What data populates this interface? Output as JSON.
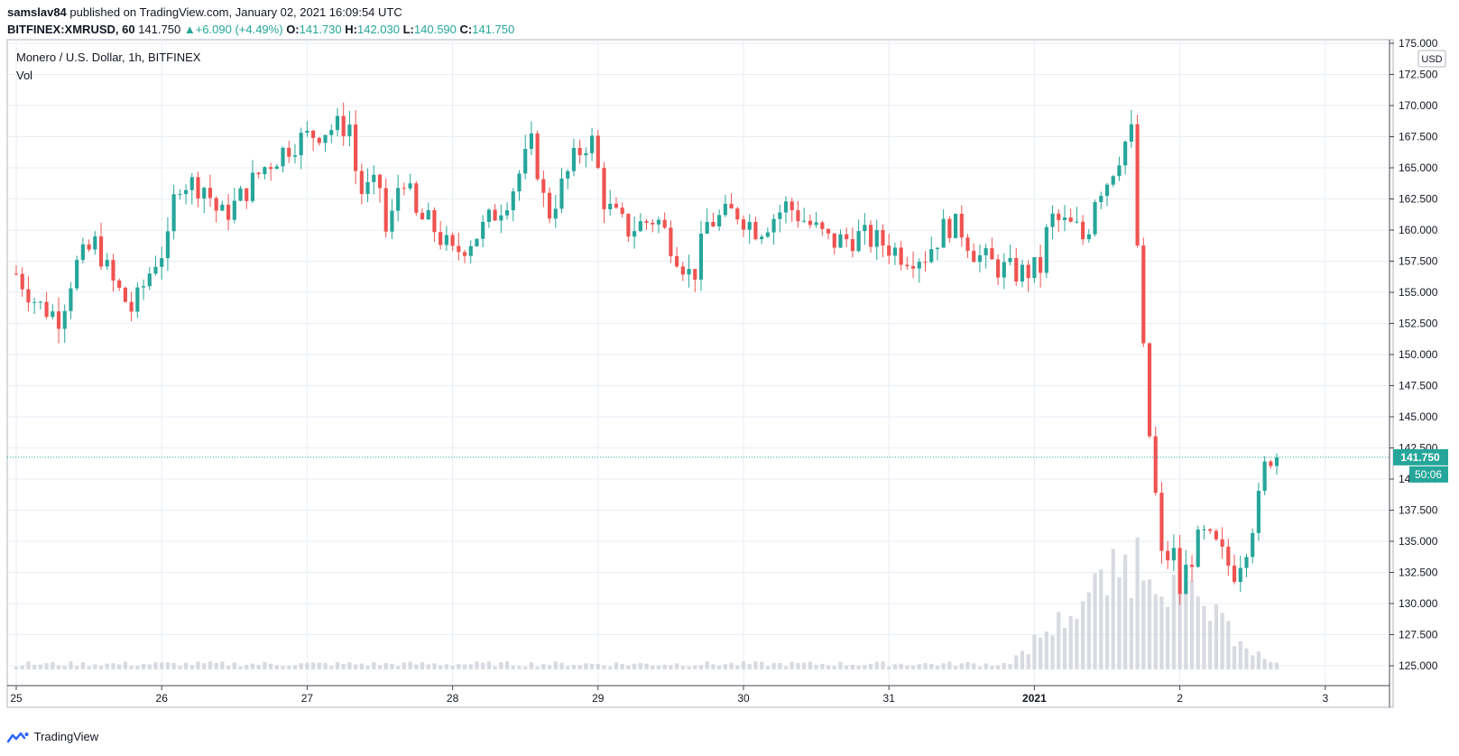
{
  "header": {
    "publisher": "samslav84",
    "published_text": "published on TradingView.com, January 02, 2021 16:09:54 UTC",
    "symbol": "BITFINEX:XMRUSD, 60",
    "last_price": "141.750",
    "change_arrow": "▲",
    "change": "+6.090 (+4.49%)",
    "o_label": "O:",
    "o_value": "141.730",
    "h_label": "H:",
    "h_value": "142.030",
    "l_label": "L:",
    "l_value": "140.590",
    "c_label": "C:",
    "c_value": "141.750"
  },
  "chart_title": "Monero / U.S. Dollar, 1h, BITFINEX",
  "volume_label": "Vol",
  "currency_badge": "USD",
  "price_badge": "141.750",
  "countdown_badge": "50:06",
  "footer_brand": "TradingView",
  "colors": {
    "up": "#26a69a",
    "down": "#ef5350",
    "volume": "#d1d4dc",
    "grid": "#e8eef4",
    "badge": "#26a69a"
  },
  "chart_data": {
    "type": "candlestick",
    "title": "Monero / U.S. Dollar, 1h, BITFINEX",
    "y_axis_ticks": [
      "125.000",
      "127.500",
      "130.000",
      "132.500",
      "135.000",
      "137.500",
      "140.000",
      "142.500",
      "145.000",
      "147.500",
      "150.000",
      "152.500",
      "155.000",
      "157.500",
      "160.000",
      "162.500",
      "165.000",
      "167.500",
      "170.000",
      "172.500",
      "175.000"
    ],
    "ylim": [
      125.0,
      175.0
    ],
    "x_axis_labels": [
      "25",
      "26",
      "27",
      "28",
      "29",
      "30",
      "31",
      "2021",
      "2",
      "3"
    ],
    "x_axis_days": [
      0,
      1,
      2,
      3,
      4,
      5,
      6,
      7,
      8,
      9
    ],
    "grid": true,
    "last_close": 141.75,
    "current_price_line": 141.75,
    "vol_max_day_offset": 7.72,
    "candles_per_day": 24,
    "daily_path": [
      {
        "day": 0.0,
        "close": 156.5
      },
      {
        "day": 0.15,
        "close": 154.0
      },
      {
        "day": 0.3,
        "close": 153.0
      },
      {
        "day": 0.4,
        "close": 157.0
      },
      {
        "day": 0.55,
        "close": 159.0
      },
      {
        "day": 0.65,
        "close": 156.0
      },
      {
        "day": 0.8,
        "close": 153.5
      },
      {
        "day": 0.95,
        "close": 157.5
      },
      {
        "day": 1.05,
        "close": 159.0
      },
      {
        "day": 1.1,
        "close": 164.0
      },
      {
        "day": 1.3,
        "close": 163.5
      },
      {
        "day": 1.4,
        "close": 161.0
      },
      {
        "day": 1.5,
        "close": 162.0
      },
      {
        "day": 1.7,
        "close": 165.0
      },
      {
        "day": 1.9,
        "close": 167.0
      },
      {
        "day": 2.1,
        "close": 168.0
      },
      {
        "day": 2.3,
        "close": 168.5
      },
      {
        "day": 2.35,
        "close": 163.0
      },
      {
        "day": 2.5,
        "close": 163.5
      },
      {
        "day": 2.55,
        "close": 159.0
      },
      {
        "day": 2.65,
        "close": 165.0
      },
      {
        "day": 2.75,
        "close": 161.0
      },
      {
        "day": 2.85,
        "close": 160.5
      },
      {
        "day": 3.0,
        "close": 158.0
      },
      {
        "day": 3.2,
        "close": 160.0
      },
      {
        "day": 3.4,
        "close": 163.0
      },
      {
        "day": 3.55,
        "close": 167.0
      },
      {
        "day": 3.65,
        "close": 161.0
      },
      {
        "day": 3.85,
        "close": 166.0
      },
      {
        "day": 3.95,
        "close": 167.5
      },
      {
        "day": 4.05,
        "close": 162.0
      },
      {
        "day": 4.2,
        "close": 160.0
      },
      {
        "day": 4.4,
        "close": 161.0
      },
      {
        "day": 4.55,
        "close": 158.0
      },
      {
        "day": 4.65,
        "close": 156.0
      },
      {
        "day": 4.75,
        "close": 160.5
      },
      {
        "day": 4.95,
        "close": 161.5
      },
      {
        "day": 5.1,
        "close": 160.0
      },
      {
        "day": 5.3,
        "close": 162.0
      },
      {
        "day": 5.45,
        "close": 160.5
      },
      {
        "day": 5.6,
        "close": 159.0
      },
      {
        "day": 5.8,
        "close": 159.5
      },
      {
        "day": 5.95,
        "close": 159.0
      },
      {
        "day": 6.1,
        "close": 158.0
      },
      {
        "day": 6.25,
        "close": 158.0
      },
      {
        "day": 6.4,
        "close": 160.5
      },
      {
        "day": 6.5,
        "close": 160.0
      },
      {
        "day": 6.6,
        "close": 158.0
      },
      {
        "day": 6.75,
        "close": 157.0
      },
      {
        "day": 6.9,
        "close": 156.5
      },
      {
        "day": 7.05,
        "close": 157.0
      },
      {
        "day": 7.1,
        "close": 161.0
      },
      {
        "day": 7.3,
        "close": 160.0
      },
      {
        "day": 7.35,
        "close": 159.0
      },
      {
        "day": 7.42,
        "close": 163.0
      },
      {
        "day": 7.5,
        "close": 164.0
      },
      {
        "day": 7.62,
        "close": 167.0
      },
      {
        "day": 7.67,
        "close": 167.8
      },
      {
        "day": 7.72,
        "close": 156.0
      },
      {
        "day": 7.77,
        "close": 146.0
      },
      {
        "day": 7.83,
        "close": 139.0
      },
      {
        "day": 7.88,
        "close": 133.0
      },
      {
        "day": 7.95,
        "close": 134.5
      },
      {
        "day": 8.0,
        "close": 131.0
      },
      {
        "day": 8.05,
        "close": 133.0
      },
      {
        "day": 8.15,
        "close": 135.5
      },
      {
        "day": 8.25,
        "close": 134.5
      },
      {
        "day": 8.37,
        "close": 132.5
      },
      {
        "day": 8.45,
        "close": 134.5
      },
      {
        "day": 8.55,
        "close": 138.5
      },
      {
        "day": 8.6,
        "close": 142.0
      },
      {
        "day": 8.65,
        "close": 141.75
      }
    ]
  }
}
